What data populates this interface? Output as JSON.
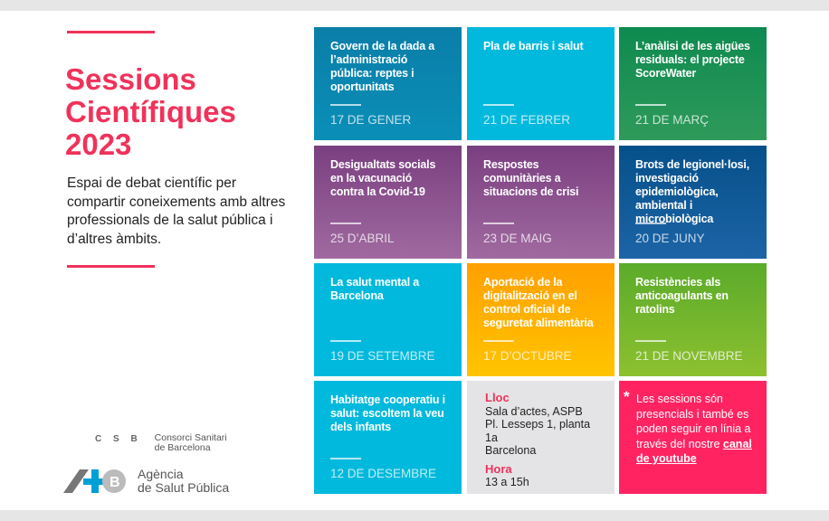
{
  "title": {
    "line1": "Sessions",
    "line2": "Científiques",
    "line3": "2023"
  },
  "description": "Espai de debat científic per compartir coneixements amb altres professionals de la salut pública i d’altres àmbits.",
  "sessions": [
    {
      "title": "Govern de la dada a l’administració pública: reptes i oportunitats",
      "date": "17 DE GENER",
      "color": "#0a86b0"
    },
    {
      "title": "Pla de barris i salut",
      "date": "21 DE FEBRER",
      "color": "#00b9dc"
    },
    {
      "title": "L’anàlisi de les aigües residuals: el projecte ScoreWater",
      "date": "21 DE MARÇ",
      "color": "#1a9155"
    },
    {
      "title": "Desigualtats socials en la vacunació contra la Covid-19",
      "date": "25 D’ABRIL",
      "color": "#8a5290"
    },
    {
      "title": "Respostes comunitàries a situacions de crisi",
      "date": "23 DE MAIG",
      "color": "#8a5290"
    },
    {
      "title": "Brots de legionel·losi, investigació epidemiològica, ambiental i microbiològica",
      "date": "20 DE JUNY",
      "color": "#0d5a98"
    },
    {
      "title": "La salut mental a Barcelona",
      "date": "19 DE SETEMBRE",
      "color": "#00b9dc"
    },
    {
      "title": "Aportació de la digitalització en el control oficial de seguretat alimentària",
      "date": "17 D’OCTUBRE",
      "color": "#ffb000"
    },
    {
      "title": "Resistències als anticoagulants en ratolins",
      "date": "21 DE NOVEMBRE",
      "color": "#74b62d"
    },
    {
      "title": "Habitatge cooperatiu i salut: escoltem la veu dels infants",
      "date": "12 DE DESEMBRE",
      "color": "#00b9dc"
    }
  ],
  "info": {
    "place_label": "Lloc",
    "place_lines": [
      "Sala d’actes, ASPB",
      "Pl. Lesseps 1, planta 1a",
      "Barcelona"
    ],
    "time_label": "Hora",
    "time": "13 a 15h"
  },
  "note": {
    "asterisk": "*",
    "text": "Les sessions són presencials i també es poden seguir en línia a través del nostre",
    "link": "canal de youtube"
  },
  "logos": {
    "csb_mark": "C S B",
    "csb_line1": "Consorci Sanitari",
    "csb_line2": "de Barcelona",
    "aspb_line1": "Agència",
    "aspb_line2": "de Salut Pública"
  }
}
